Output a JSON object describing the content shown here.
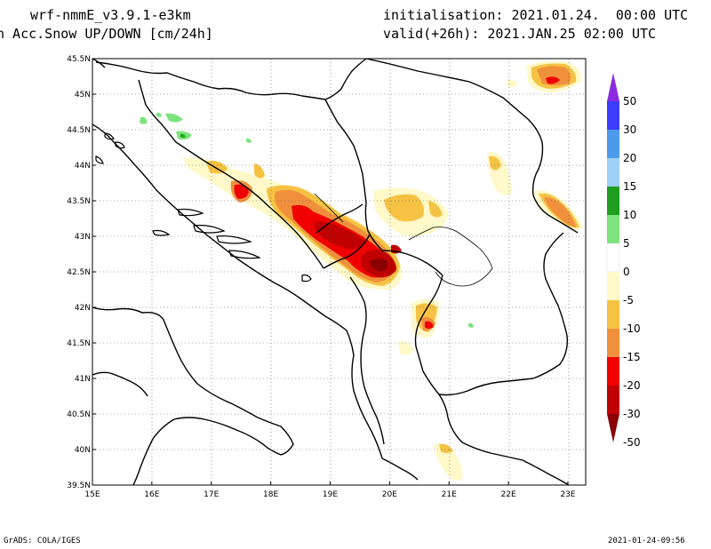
{
  "header": {
    "model": "wrf-nmmE_v3.9.1-e3km",
    "field": "h Acc.Snow UP/DOWN [cm/24h]",
    "init": "initialisation: 2021.01.24.  00:00 UTC",
    "valid": "valid(+26h): 2021.JAN.25 02:00 UTC"
  },
  "map": {
    "lon_range": [
      15,
      23.3
    ],
    "lat_range": [
      39.5,
      45.5
    ],
    "lon_ticks": [
      "15E",
      "16E",
      "17E",
      "18E",
      "19E",
      "20E",
      "21E",
      "22E",
      "23E"
    ],
    "lat_ticks": [
      "45.5N",
      "45N",
      "44.5N",
      "44N",
      "43.5N",
      "43N",
      "42.5N",
      "42N",
      "41.5N",
      "41N",
      "40.5N",
      "40N",
      "39.5N"
    ],
    "grid": "dotted"
  },
  "colorbar": {
    "labels": [
      "50",
      "30",
      "20",
      "15",
      "10",
      "5",
      "0",
      "-5",
      "-10",
      "-15",
      "-20",
      "-30",
      "-50"
    ],
    "colors": [
      "#8a2be2",
      "#3c3cff",
      "#4b9bea",
      "#9fd0f7",
      "#1f9e1f",
      "#7de37d",
      "#ffffff",
      "#fff8c8",
      "#f5c244",
      "#f08f3c",
      "#f00000",
      "#c00000",
      "#8b0000"
    ]
  },
  "footer": {
    "credit": "GrADS: COLA/IGES",
    "timestamp": "2021-01-24-09:56"
  }
}
